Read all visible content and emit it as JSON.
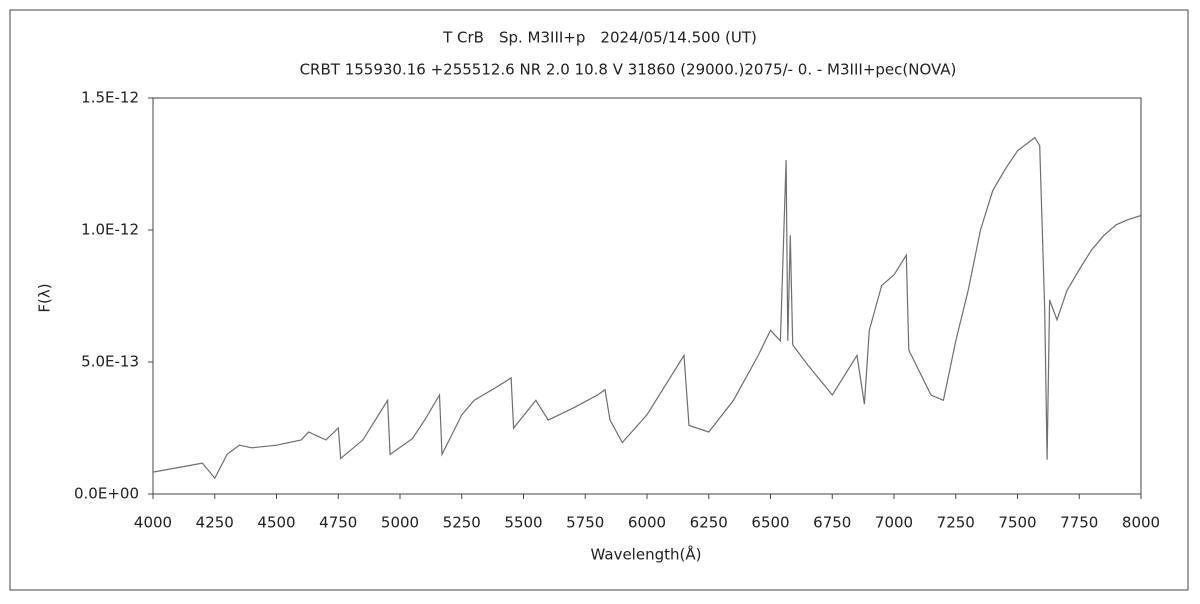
{
  "chart_data": {
    "type": "line",
    "title": "T CrB　Sp. M3III+p　2024/05/14.500 (UT)",
    "subtitle": "CRBT 155930.16 +255512.6 NR 2.0 10.8 V 31860 (29000.)2075/-  0. - M3III+pec(NOVA)",
    "x_label": "Wavelength(Å)",
    "y_label": "F(λ)",
    "color": "#6e6e6e",
    "x": [
      4000,
      4100,
      4200,
      4250,
      4300,
      4350,
      4400,
      4500,
      4600,
      4630,
      4700,
      4750,
      4760,
      4850,
      4900,
      4950,
      4960,
      5050,
      5100,
      5160,
      5170,
      5250,
      5300,
      5400,
      5450,
      5460,
      5550,
      5600,
      5700,
      5800,
      5830,
      5850,
      5900,
      6000,
      6100,
      6150,
      6170,
      6250,
      6350,
      6450,
      6500,
      6540,
      6563,
      6570,
      6580,
      6590,
      6650,
      6750,
      6850,
      6880,
      6900,
      6950,
      7000,
      7050,
      7060,
      7150,
      7200,
      7250,
      7300,
      7350,
      7400,
      7450,
      7500,
      7570,
      7590,
      7610,
      7620,
      7630,
      7660,
      7700,
      7750,
      7800,
      7850,
      7900,
      7950,
      8000
    ],
    "values": [
      8.3e-14,
      1e-13,
      1.17e-13,
      6e-14,
      1.5e-13,
      1.85e-13,
      1.75e-13,
      1.85e-13,
      2.05e-13,
      2.35e-13,
      2.05e-13,
      2.5e-13,
      1.35e-13,
      2.05e-13,
      2.8e-13,
      3.55e-13,
      1.5e-13,
      2.1e-13,
      2.8e-13,
      3.75e-13,
      1.5e-13,
      3e-13,
      3.55e-13,
      4.1e-13,
      4.4e-13,
      2.5e-13,
      3.55e-13,
      2.8e-13,
      3.25e-13,
      3.75e-13,
      3.95e-13,
      2.8e-13,
      1.95e-13,
      3e-13,
      4.5e-13,
      5.25e-13,
      2.6e-13,
      2.35e-13,
      3.55e-13,
      5.25e-13,
      6.2e-13,
      5.8e-13,
      1.265e-12,
      5.8e-13,
      9.8e-13,
      5.65e-13,
      4.9e-13,
      3.75e-13,
      5.25e-13,
      3.4e-13,
      6.2e-13,
      7.9e-13,
      8.3e-13,
      9.05e-13,
      5.45e-13,
      3.75e-13,
      3.55e-13,
      5.8e-13,
      7.7e-13,
      1e-12,
      1.15e-12,
      1.23e-12,
      1.3e-12,
      1.35e-12,
      1.32e-12,
      7e-13,
      1.3e-13,
      7.35e-13,
      6.6e-13,
      7.7e-13,
      8.5e-13,
      9.25e-13,
      9.8e-13,
      1.02e-12,
      1.04e-12,
      1.055e-12
    ],
    "xlim": [
      4000,
      8000
    ],
    "xticks": [
      4000,
      4250,
      4500,
      4750,
      5000,
      5250,
      5500,
      5750,
      6000,
      6250,
      6500,
      6750,
      7000,
      7250,
      7500,
      7750,
      8000
    ],
    "ylim": [
      0,
      1.5e-12
    ],
    "yticks": [
      {
        "value": 0,
        "label": "0.0E+00"
      },
      {
        "value": 5e-13,
        "label": "5.0E-13"
      },
      {
        "value": 1e-12,
        "label": "1.0E-12"
      },
      {
        "value": 1.5e-12,
        "label": "1.5E-12"
      }
    ]
  }
}
